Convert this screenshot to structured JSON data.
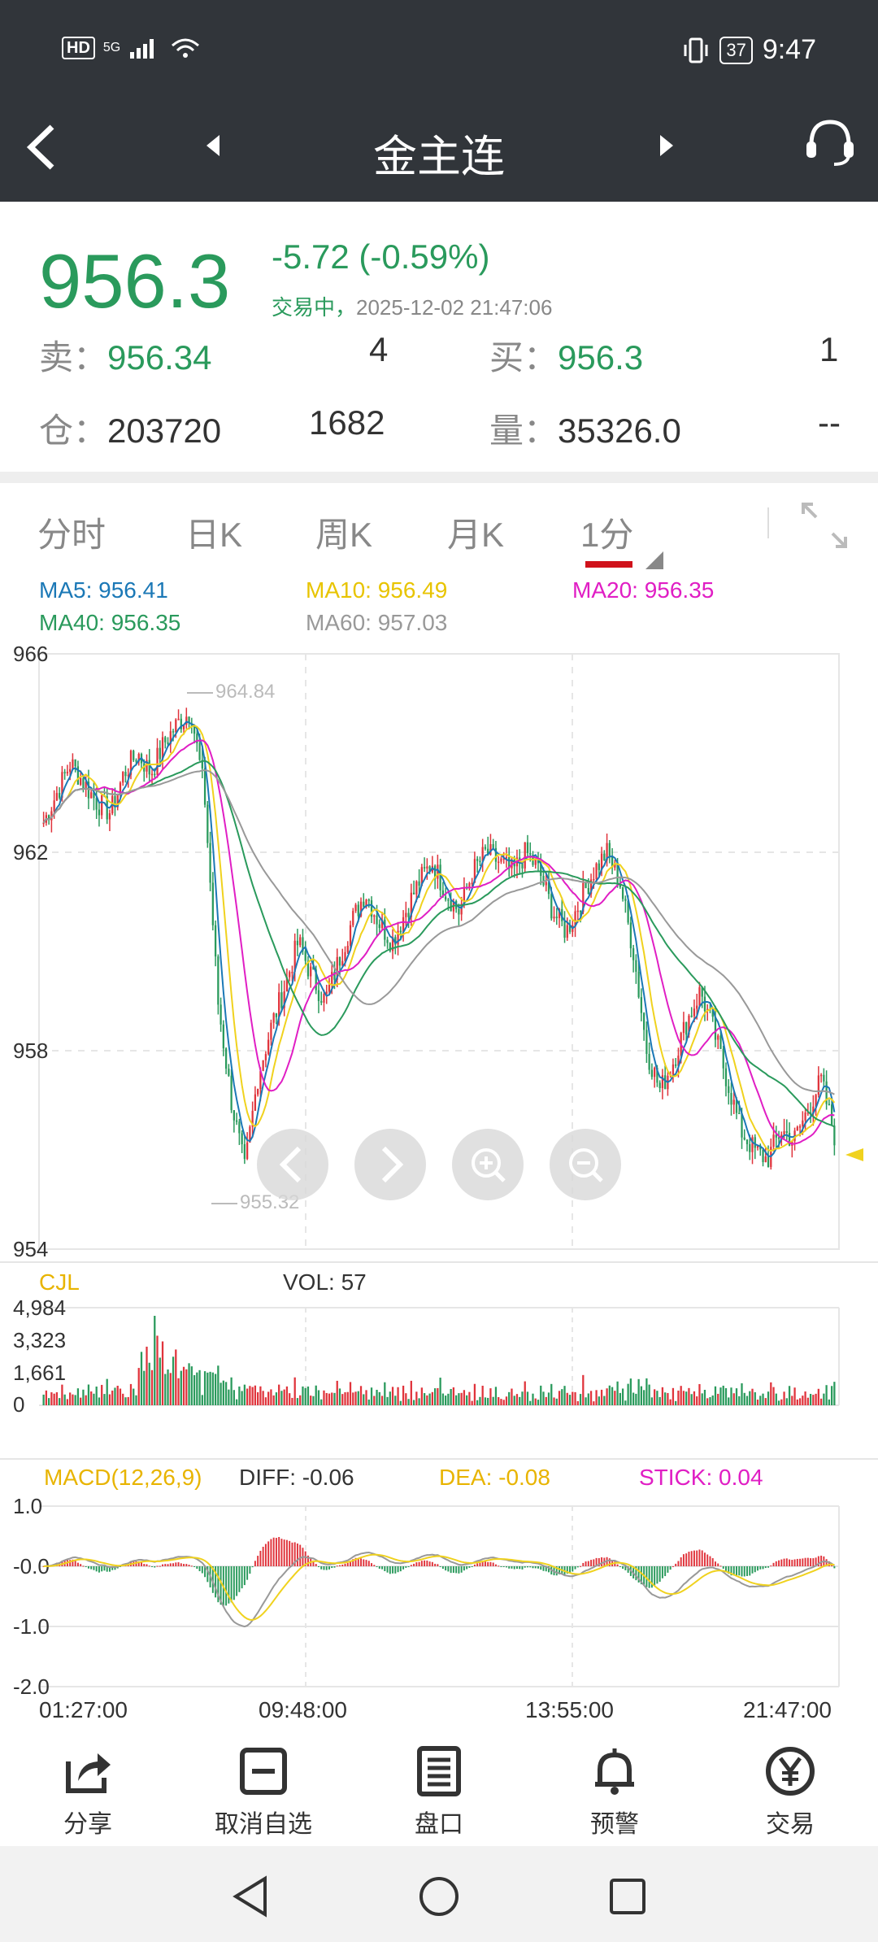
{
  "status_bar": {
    "hd": "HD",
    "network": "5G",
    "battery": "37",
    "time": "9:47"
  },
  "header": {
    "title": "金主连"
  },
  "quote": {
    "price": "956.3",
    "change": "-5.72",
    "change_pct": "(-0.59%)",
    "trade_state": "交易中，",
    "timestamp": "2025-12-02 21:47:06",
    "sell_label": "卖：",
    "sell_price": "956.34",
    "sell_qty": "4",
    "buy_label": "买：",
    "buy_price": "956.3",
    "buy_qty": "1",
    "oi_label": "仓：",
    "open_interest": "203720",
    "oi_change": "1682",
    "vol_label": "量：",
    "volume": "35326.0",
    "vol_extra": "--"
  },
  "tabs": [
    "分时",
    "日K",
    "周K",
    "月K",
    "1分"
  ],
  "active_tab": "1分",
  "ma_legend": {
    "ma5": "MA5: 956.41",
    "ma10": "MA10: 956.49",
    "ma20": "MA20: 956.35",
    "ma40": "MA40: 956.35",
    "ma60": "MA60: 957.03"
  },
  "colors": {
    "up": "#e0343c",
    "down": "#2a9a5c",
    "ma5": "#1b78b6",
    "ma10": "#f0d21e",
    "ma20": "#e01ec4",
    "ma40": "#2a9a5c",
    "ma60": "#999999"
  },
  "chart_data": [
    {
      "type": "candlestick",
      "ylim": [
        954,
        966
      ],
      "y_ticks": [
        "966",
        "962",
        "958",
        "954"
      ],
      "high_label": "964.84",
      "low_label": "955.32",
      "price_path": [
        962.6,
        963.2,
        963.8,
        963.4,
        963.0,
        962.8,
        963.6,
        964.0,
        963.6,
        964.2,
        964.6,
        964.84,
        963.2,
        959.0,
        957.0,
        955.6,
        957.5,
        958.5,
        959.3,
        960.2,
        959.5,
        959.0,
        959.8,
        960.6,
        961.2,
        960.6,
        960.2,
        960.8,
        961.4,
        961.8,
        961.2,
        960.8,
        961.6,
        962.0,
        961.8,
        961.6,
        962.0,
        961.6,
        960.8,
        960.4,
        961.0,
        961.6,
        962.0,
        961.4,
        960.0,
        958.0,
        957.2,
        957.8,
        958.6,
        959.2,
        958.4,
        957.4,
        956.4,
        956.0,
        955.8,
        956.4,
        956.2,
        956.8,
        957.4,
        956.3
      ],
      "volume_ticks": [
        "4,984",
        "3,323",
        "1,661",
        "0"
      ],
      "vol_label": "CJL",
      "vol_value": "VOL: 57",
      "macd_ticks": [
        "1.0",
        "-0.0",
        "-1.0",
        "-2.0"
      ],
      "macd_label": "MACD(12,26,9)",
      "diff": "DIFF: -0.06",
      "dea": "DEA: -0.08",
      "stick": "STICK: 0.04",
      "x_ticks": [
        "01:27:00",
        "09:48:00",
        "13:55:00",
        "21:47:00"
      ]
    }
  ],
  "toolbar": [
    {
      "label": "分享",
      "icon": "share-icon"
    },
    {
      "label": "取消自选",
      "icon": "remove-watchlist-icon"
    },
    {
      "label": "盘口",
      "icon": "orderbook-icon"
    },
    {
      "label": "预警",
      "icon": "bell-icon"
    },
    {
      "label": "交易",
      "icon": "yen-icon"
    }
  ]
}
